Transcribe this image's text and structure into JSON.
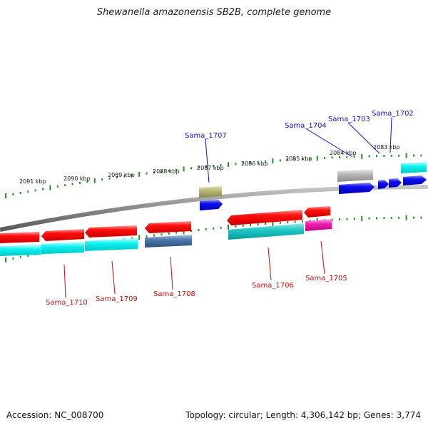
{
  "title": "Shewanella amazonensis SB2B, complete genome",
  "footer": {
    "accession": "Accession: NC_008700",
    "topology": "Topology: circular; Length: 4,306,142 bp; Genes: 3,774"
  },
  "colors": {
    "backbone": "#8a8a8a",
    "tick": "#2a8a2a",
    "label_top": "#1010c0",
    "label_bottom": "#c01010"
  },
  "kbp_labels": [
    "2091 kbp",
    "2090 kbp",
    "2089 kbp",
    "2088 kbp",
    "2087 kbp",
    "2086 kbp",
    "2085 kbp",
    "2084 kbp",
    "2083 kbp"
  ],
  "gene_labels_top": [
    "Sama_1707",
    "Sama_1704",
    "Sama_1703",
    "Sama_1702"
  ],
  "gene_labels_bottom": [
    "Sama_1710",
    "Sama_1709",
    "Sama_1708",
    "Sama_1706",
    "Sama_1705"
  ]
}
